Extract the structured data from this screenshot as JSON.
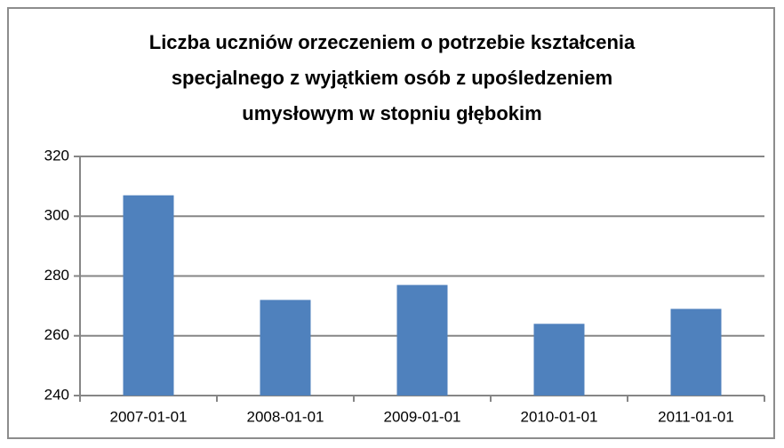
{
  "chart_data": {
    "type": "bar",
    "title": "Liczba uczniów orzeczeniem o potrzebie kształcenia\nspecjalnego z wyjątkiem osób z upośledzeniem\numysłowym w stopniu głębokim",
    "categories": [
      "2007-01-01",
      "2008-01-01",
      "2009-01-01",
      "2010-01-01",
      "2011-01-01"
    ],
    "values": [
      307,
      272,
      277,
      264,
      269
    ],
    "color": "#4f81bd",
    "ylim": [
      240,
      320
    ],
    "yticks": [
      240,
      260,
      280,
      300,
      320
    ],
    "grid": true
  }
}
